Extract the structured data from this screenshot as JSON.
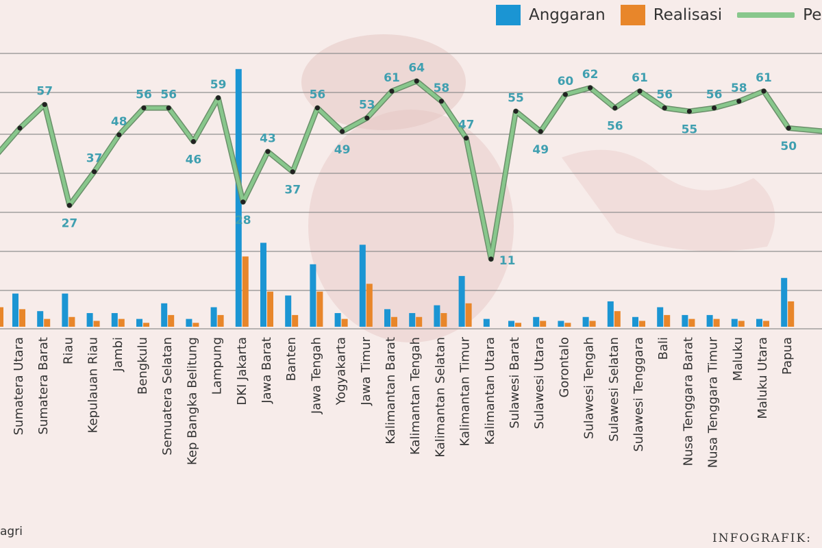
{
  "legend": {
    "items": [
      {
        "label": "Anggaran",
        "color": "#1b95d3"
      },
      {
        "label": "Realisasi",
        "color": "#e8862a"
      },
      {
        "label": "Per",
        "color": "#88c78c"
      }
    ]
  },
  "footer": {
    "source": "agri",
    "credit": "INFOGRAFIK:"
  },
  "chart_data": {
    "type": "bar",
    "categories": [
      "Sumatera Utara",
      "Sumatera Barat",
      "Riau",
      "Kepulauan Riau",
      "Jambi",
      "Bengkulu",
      "Semuatera Selatan",
      "Kep Bangka Belitung",
      "Lampung",
      "DKI Jakarta",
      "Jawa Barat",
      "Banten",
      "Jawa Tengah",
      "Yogyakarta",
      "Jawa Timur",
      "Kalimantan Barat",
      "Kalimantan Tengah",
      "Kalimantan Selatan",
      "Kalimantan Timur",
      "Kalimantan Utara",
      "Sulawesi Barat",
      "Sulawesi Utara",
      "Gorontalo",
      "Sulawesi Tengah",
      "Sulawesi Selatan",
      "Sulawesi Tenggara",
      "Bali",
      "Nusa Tenggara Barat",
      "Nusa Tenggara Timur",
      "Maluku",
      "Maluku Utara",
      "Papua"
    ],
    "series": [
      {
        "name": "Anggaran",
        "type": "bar",
        "color": "#1b95d3",
        "values": [
          8.5,
          4,
          8.5,
          3.5,
          3.5,
          2,
          6,
          2,
          5,
          66,
          21.5,
          8,
          16,
          3.5,
          21,
          4.5,
          3.5,
          5.5,
          13,
          2,
          1.5,
          2.5,
          1.5,
          2.5,
          6.5,
          2.5,
          5,
          3,
          3,
          2,
          2,
          12.5
        ]
      },
      {
        "name": "Realisasi",
        "type": "bar",
        "color": "#e8862a",
        "values": [
          4.5,
          2,
          2.5,
          1.5,
          2,
          1,
          3,
          1,
          3,
          18,
          9,
          3,
          9,
          2,
          11,
          2.5,
          2.5,
          3.5,
          6,
          0,
          1,
          1.5,
          1,
          1.5,
          4,
          1.5,
          3,
          2,
          2,
          1.5,
          1.5,
          6.5
        ]
      },
      {
        "name": "Per",
        "type": "line",
        "color": "#88c78c",
        "values": [
          50,
          57,
          27,
          37,
          48,
          56,
          56,
          46,
          59,
          28,
          43,
          37,
          56,
          49,
          53,
          61,
          64,
          58,
          47,
          11,
          55,
          49,
          60,
          62,
          56,
          61,
          56,
          55,
          56,
          58,
          61,
          50
        ],
        "labels": [
          null,
          "57",
          "27",
          "37",
          "48",
          "56",
          "56",
          "46",
          "59",
          "28",
          "43",
          "37",
          "56",
          "49",
          "53",
          "61",
          "64",
          "58",
          "47",
          "11",
          "55",
          "49",
          "60",
          "62",
          "56",
          "61",
          "56",
          "55",
          "56",
          "58",
          "61",
          "50"
        ]
      }
    ],
    "edge_points": {
      "line_left": 42,
      "line_right": 49,
      "bar_left_realisasi": 5,
      "bar_left_anggaran": 2
    },
    "ylim": [
      0,
      70
    ],
    "grid": true,
    "legend_position": "top-right"
  }
}
